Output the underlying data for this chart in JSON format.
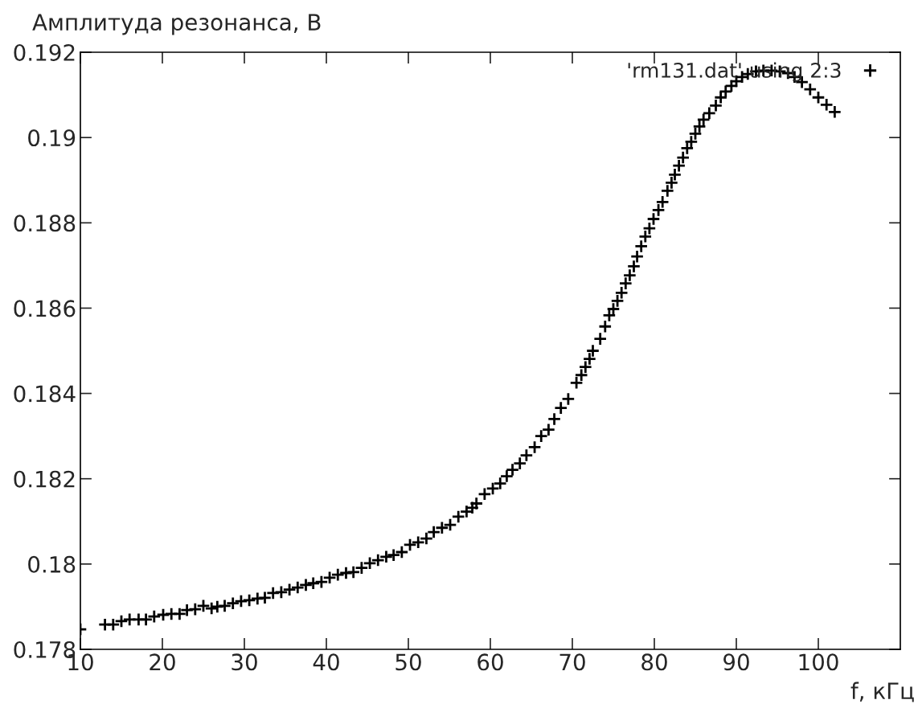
{
  "chart_data": {
    "type": "scatter",
    "ylabel": "Амплитуда резонанса, В",
    "xlabel": "f, кГц",
    "xlim": [
      10,
      110
    ],
    "xticks": [
      10,
      20,
      30,
      40,
      50,
      60,
      70,
      80,
      90,
      100
    ],
    "ylim": [
      0.178,
      0.192
    ],
    "yticks": [
      0.178,
      0.18,
      0.182,
      0.184,
      0.186,
      0.188,
      0.19,
      0.192
    ],
    "grid": false,
    "legend": "top right",
    "marker": "cross",
    "series": [
      {
        "name": "'rm131.dat' using 2:3",
        "color": "#000000",
        "x": [
          10,
          13.0,
          14.0,
          15.0,
          16.0,
          17.1,
          18.0,
          19.0,
          20.1,
          21.1,
          22.1,
          23.0,
          24.0,
          25.0,
          26.0,
          26.7,
          27.6,
          28.6,
          29.6,
          30.6,
          31.6,
          32.5,
          33.5,
          34.5,
          35.5,
          36.5,
          37.5,
          38.4,
          39.4,
          40.4,
          41.4,
          42.4,
          43.3,
          44.3,
          45.3,
          46.3,
          47.3,
          48.2,
          49.2,
          50.2,
          51.2,
          52.2,
          53.1,
          54.1,
          55.1,
          56.1,
          57.1,
          57.8,
          58.3,
          59.3,
          60.3,
          61.2,
          62.0,
          62.7,
          63.6,
          64.4,
          65.4,
          66.2,
          67.1,
          67.8,
          68.6,
          69.5,
          70.5,
          71.1,
          71.6,
          72.1,
          72.5,
          73.4,
          74.0,
          74.5,
          75.0,
          75.5,
          76.0,
          76.5,
          77.0,
          77.5,
          77.9,
          78.4,
          78.9,
          79.4,
          79.9,
          80.5,
          81.0,
          81.6,
          82.1,
          82.5,
          83.0,
          83.5,
          84.0,
          84.5,
          85.0,
          85.5,
          86.0,
          86.7,
          87.5,
          88.1,
          88.7,
          89.4,
          90.0,
          90.7,
          91.4,
          92.4,
          93.3,
          94.3,
          95.3,
          96.3,
          97.1,
          98.0,
          99.0,
          100.0,
          101.0,
          102.0
        ],
        "values": [
          0.17847,
          0.17858,
          0.17858,
          0.17866,
          0.1787,
          0.1787,
          0.1787,
          0.17877,
          0.17881,
          0.17883,
          0.17883,
          0.17892,
          0.17894,
          0.17902,
          0.17896,
          0.179,
          0.17902,
          0.17908,
          0.17913,
          0.17915,
          0.17919,
          0.17921,
          0.17932,
          0.17934,
          0.1794,
          0.17945,
          0.17951,
          0.17955,
          0.17958,
          0.17968,
          0.17975,
          0.17979,
          0.17981,
          0.17991,
          0.18002,
          0.18009,
          0.18017,
          0.18021,
          0.18028,
          0.18045,
          0.18051,
          0.1806,
          0.18075,
          0.18085,
          0.18092,
          0.18111,
          0.18123,
          0.18132,
          0.18142,
          0.18164,
          0.18177,
          0.18189,
          0.18206,
          0.18221,
          0.18236,
          0.18255,
          0.18274,
          0.183,
          0.18315,
          0.1834,
          0.18366,
          0.18387,
          0.18425,
          0.18443,
          0.18462,
          0.18481,
          0.185,
          0.18528,
          0.18557,
          0.18583,
          0.18598,
          0.18617,
          0.18636,
          0.18658,
          0.18677,
          0.18698,
          0.18721,
          0.18745,
          0.18768,
          0.18787,
          0.18809,
          0.1883,
          0.18849,
          0.18875,
          0.18894,
          0.18913,
          0.18934,
          0.18953,
          0.18975,
          0.1899,
          0.19009,
          0.19026,
          0.19042,
          0.19057,
          0.19075,
          0.19094,
          0.19108,
          0.19121,
          0.19132,
          0.19142,
          0.19149,
          0.19155,
          0.19157,
          0.19157,
          0.19155,
          0.19151,
          0.19142,
          0.1913,
          0.19113,
          0.19094,
          0.19077,
          0.1906
        ]
      }
    ]
  }
}
